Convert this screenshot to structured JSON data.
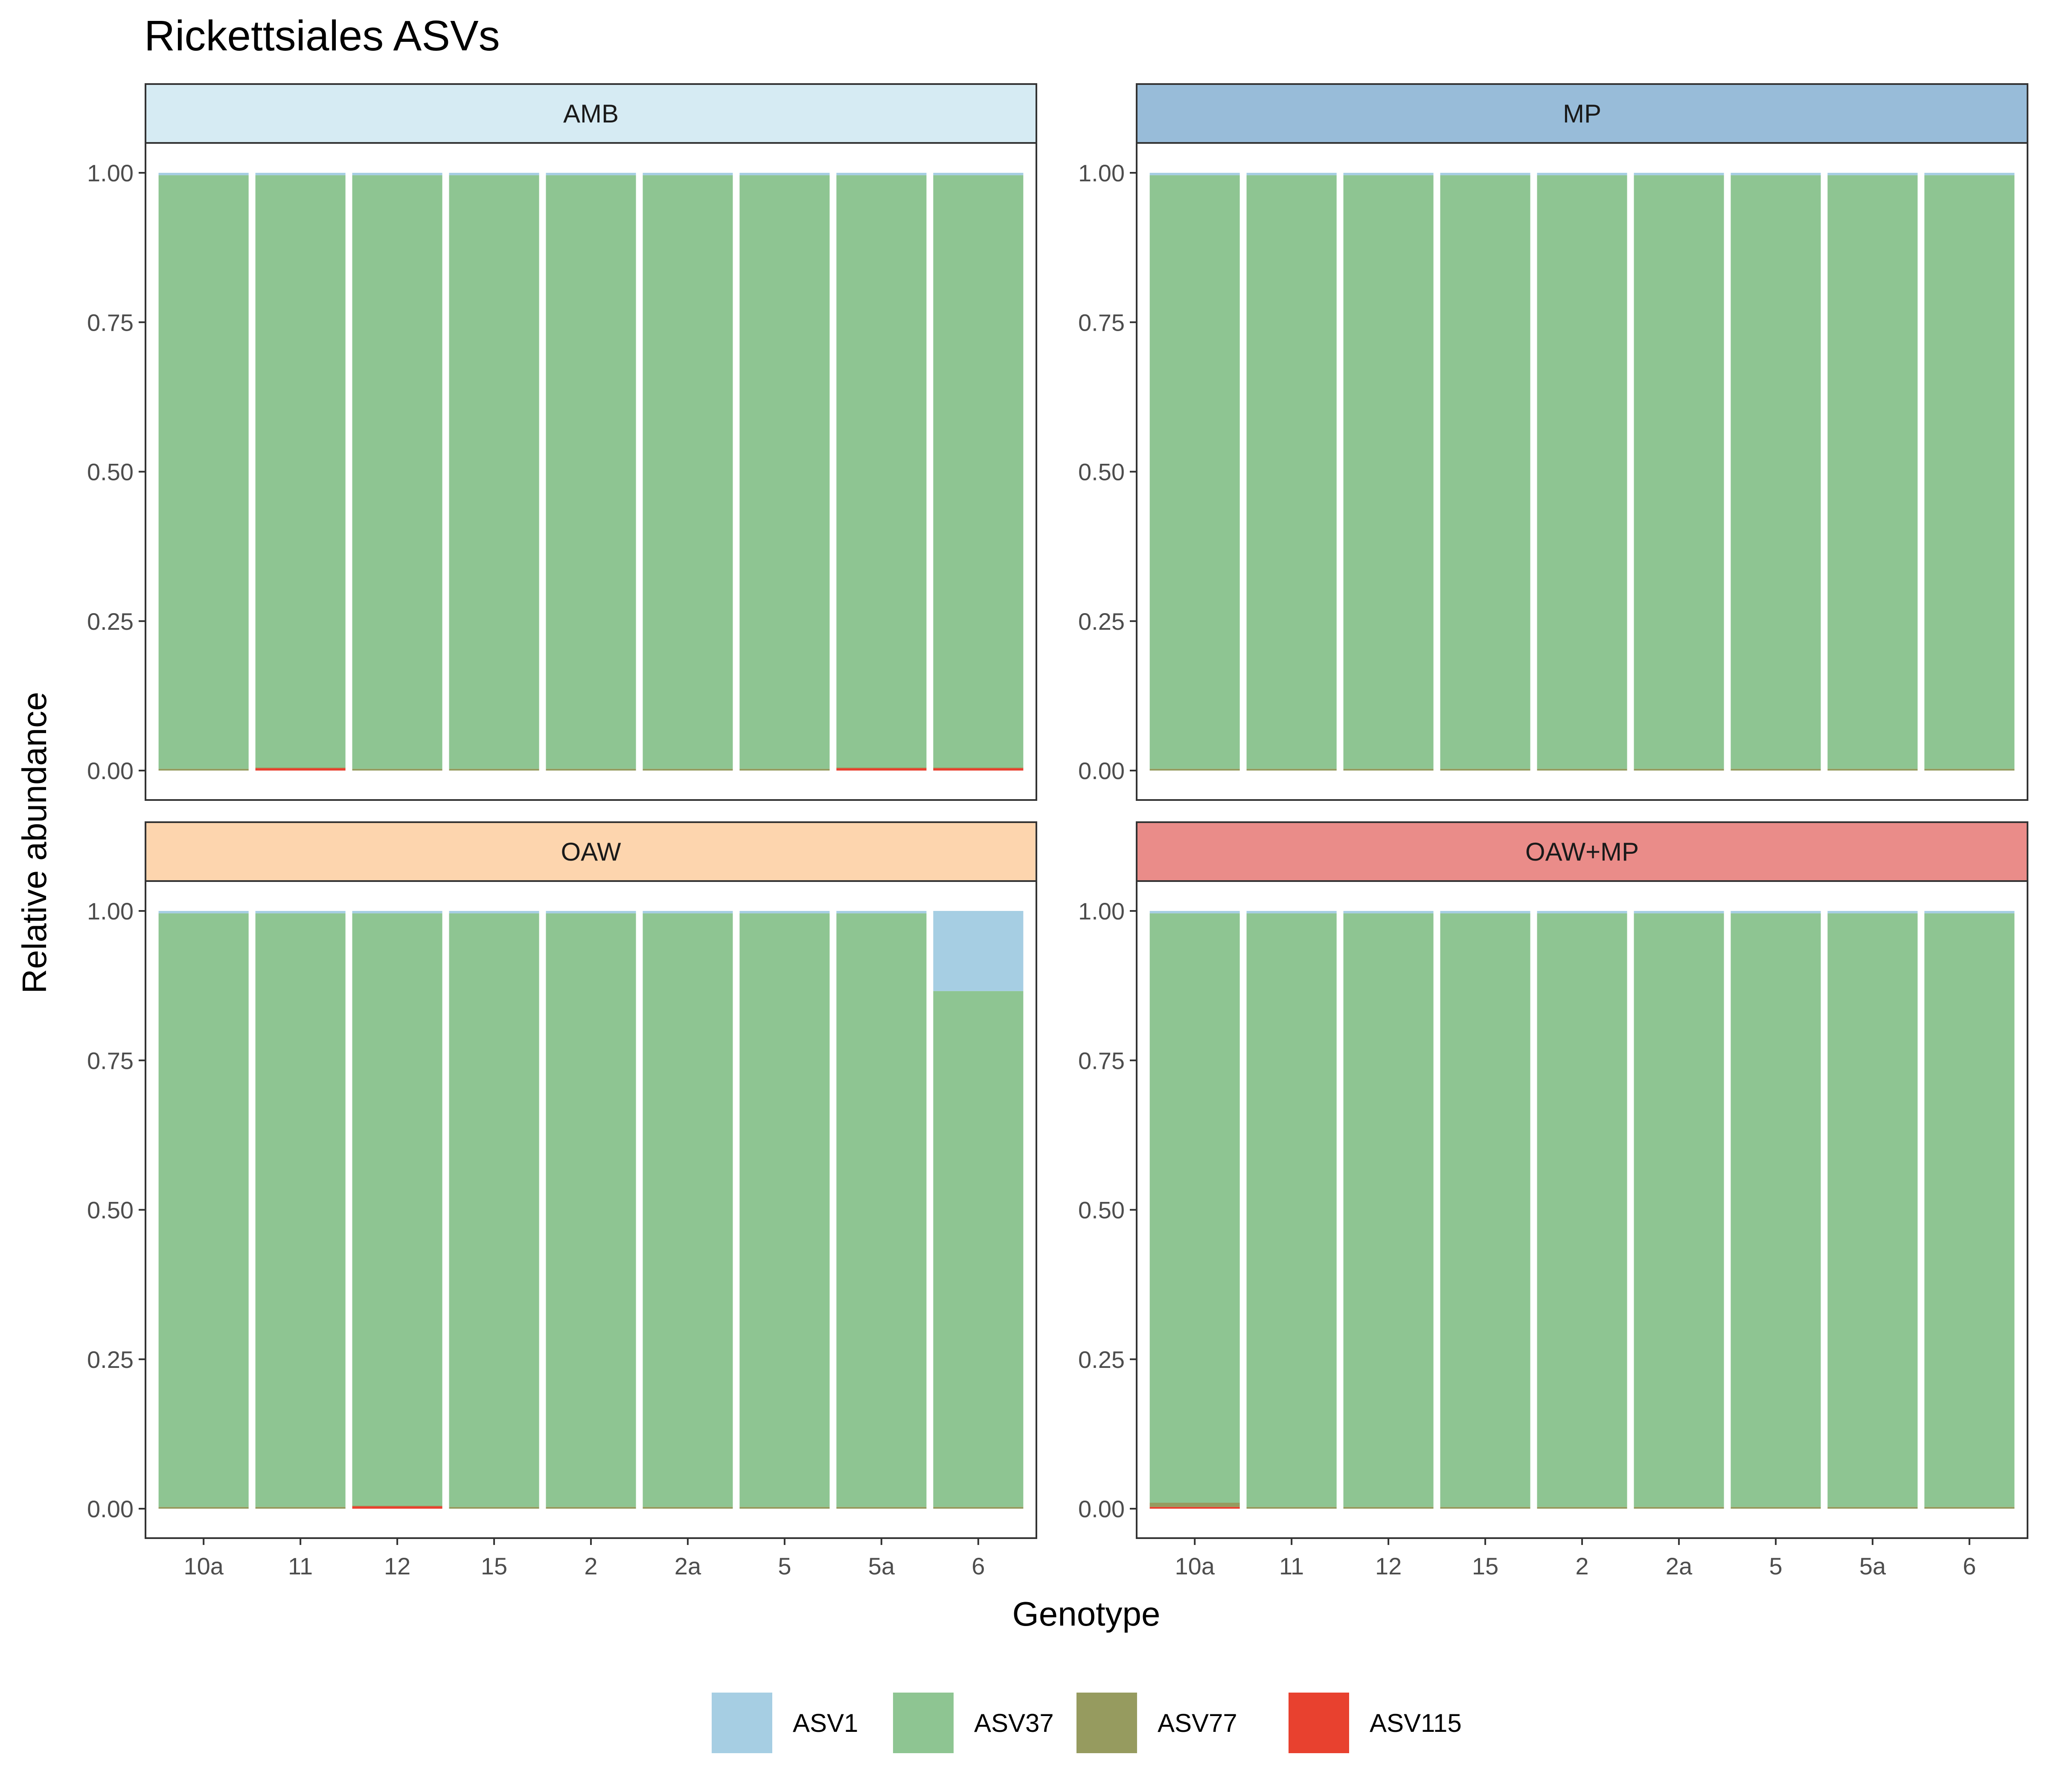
{
  "chart_data": {
    "type": "bar",
    "stacked": true,
    "title": "Rickettsiales ASVs",
    "xlabel": "Genotype",
    "ylabel": "Relative abundance",
    "ylim": [
      0,
      1
    ],
    "yticks": [
      0,
      0.25,
      0.5,
      0.75,
      1
    ],
    "ytick_labels": [
      "0.00",
      "0.25",
      "0.50",
      "0.75",
      "1.00"
    ],
    "categories": [
      "10a",
      "11",
      "12",
      "15",
      "2",
      "2a",
      "5",
      "5a",
      "6"
    ],
    "legend_position": "bottom",
    "grid": false,
    "series_colors": {
      "ASV1": "#a6cee3",
      "ASV37": "#8ec592",
      "ASV77": "#969b5f",
      "ASV115": "#e8412f"
    },
    "facets": [
      {
        "name": "AMB",
        "strip_color": "#d6ebf3",
        "series": [
          {
            "name": "ASV115",
            "values": [
              0,
              0.004,
              0,
              0,
              0,
              0,
              0,
              0.004,
              0.004
            ]
          },
          {
            "name": "ASV77",
            "values": [
              0.003,
              0.001,
              0.003,
              0.003,
              0.003,
              0.003,
              0.003,
              0.001,
              0.001
            ]
          },
          {
            "name": "ASV37",
            "values": [
              0.993,
              0.991,
              0.993,
              0.993,
              0.993,
              0.993,
              0.993,
              0.991,
              0.991
            ]
          },
          {
            "name": "ASV1",
            "values": [
              0.004,
              0.004,
              0.004,
              0.004,
              0.004,
              0.004,
              0.004,
              0.004,
              0.004
            ]
          }
        ]
      },
      {
        "name": "MP",
        "strip_color": "#98bcd9",
        "series": [
          {
            "name": "ASV115",
            "values": [
              0,
              0,
              0,
              0,
              0,
              0,
              0,
              0,
              0
            ]
          },
          {
            "name": "ASV77",
            "values": [
              0.003,
              0.003,
              0.003,
              0.003,
              0.003,
              0.003,
              0.003,
              0.003,
              0.003
            ]
          },
          {
            "name": "ASV37",
            "values": [
              0.993,
              0.993,
              0.993,
              0.993,
              0.993,
              0.993,
              0.993,
              0.993,
              0.993
            ]
          },
          {
            "name": "ASV1",
            "values": [
              0.004,
              0.004,
              0.004,
              0.004,
              0.004,
              0.004,
              0.004,
              0.004,
              0.004
            ]
          }
        ]
      },
      {
        "name": "OAW",
        "strip_color": "#fdd5ae",
        "series": [
          {
            "name": "ASV115",
            "values": [
              0,
              0,
              0.004,
              0,
              0,
              0,
              0,
              0,
              0
            ]
          },
          {
            "name": "ASV77",
            "values": [
              0.003,
              0.003,
              0.001,
              0.003,
              0.003,
              0.003,
              0.003,
              0.003,
              0.003
            ]
          },
          {
            "name": "ASV37",
            "values": [
              0.993,
              0.993,
              0.991,
              0.993,
              0.993,
              0.993,
              0.993,
              0.993,
              0.863
            ]
          },
          {
            "name": "ASV1",
            "values": [
              0.004,
              0.004,
              0.004,
              0.004,
              0.004,
              0.004,
              0.004,
              0.004,
              0.134
            ]
          }
        ]
      },
      {
        "name": "OAW+MP",
        "strip_color": "#ea8c89",
        "series": [
          {
            "name": "ASV115",
            "values": [
              0.003,
              0,
              0,
              0,
              0,
              0,
              0,
              0,
              0
            ]
          },
          {
            "name": "ASV77",
            "values": [
              0.007,
              0.003,
              0.003,
              0.003,
              0.003,
              0.003,
              0.003,
              0.003,
              0.003
            ]
          },
          {
            "name": "ASV37",
            "values": [
              0.986,
              0.993,
              0.993,
              0.993,
              0.993,
              0.993,
              0.993,
              0.993,
              0.993
            ]
          },
          {
            "name": "ASV1",
            "values": [
              0.004,
              0.004,
              0.004,
              0.004,
              0.004,
              0.004,
              0.004,
              0.004,
              0.004
            ]
          }
        ]
      }
    ],
    "legend": [
      "ASV1",
      "ASV37",
      "ASV77",
      "ASV115"
    ]
  }
}
